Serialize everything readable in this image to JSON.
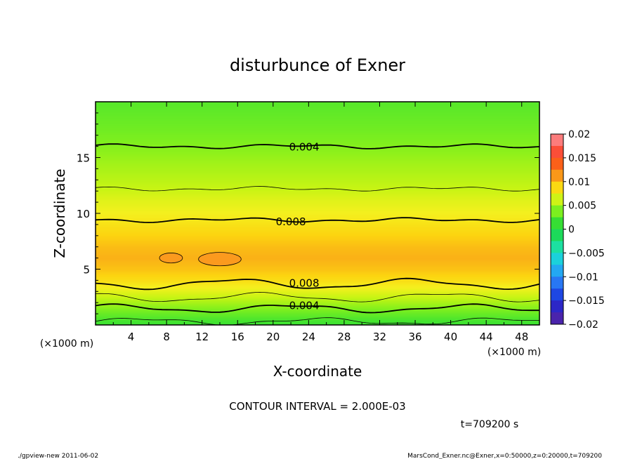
{
  "chart_data": {
    "type": "heatmap",
    "title": "disturbunce of Exner",
    "xlabel": "X-coordinate",
    "ylabel": "Z-coordinate",
    "x_unit": "(×1000 m)",
    "y_unit": "(×1000 m)",
    "xlim": [
      0,
      50
    ],
    "ylim": [
      0,
      20
    ],
    "x_ticks": [
      "4",
      "8",
      "12",
      "16",
      "20",
      "24",
      "28",
      "32",
      "36",
      "40",
      "44",
      "48"
    ],
    "y_ticks": [
      "5",
      "10",
      "15"
    ],
    "profile": {
      "z": [
        0,
        0.6,
        1.2,
        1.8,
        2.5,
        3.3,
        4.0,
        5.0,
        6.0,
        7.0,
        7.8,
        8.6,
        9.4,
        10.2,
        11.2,
        12.2,
        13.4,
        14.6,
        16.0,
        17.5,
        20.0
      ],
      "value": [
        0.0015,
        0.0024,
        0.0034,
        0.0046,
        0.006,
        0.0074,
        0.0085,
        0.0096,
        0.0102,
        0.0098,
        0.0092,
        0.0086,
        0.008,
        0.0074,
        0.0068,
        0.006,
        0.0054,
        0.0048,
        0.004,
        0.0034,
        0.0026
      ]
    },
    "contour_labels": [
      {
        "text": "0.004",
        "x": 23.5,
        "z": 16.0
      },
      {
        "text": "0.008",
        "x": 22.0,
        "z": 9.3
      },
      {
        "text": "0.008",
        "x": 23.5,
        "z": 3.8
      },
      {
        "text": "0.004",
        "x": 23.5,
        "z": 1.8
      }
    ],
    "colorbar": {
      "ticks": [
        "0.02",
        "0.015",
        "0.01",
        "0.005",
        "0",
        "−0.005",
        "−0.01",
        "−0.015",
        "−0.02"
      ],
      "range": [
        -0.02,
        0.02
      ]
    },
    "contour_interval": "CONTOUR INTERVAL = 2.000E-03",
    "time": "t=709200  s"
  },
  "footer": {
    "left": "./gpview-new   2011-06-02",
    "right": "MarsCond_Exner.nc@Exner,x=0:50000,z=0:20000,t=709200"
  }
}
